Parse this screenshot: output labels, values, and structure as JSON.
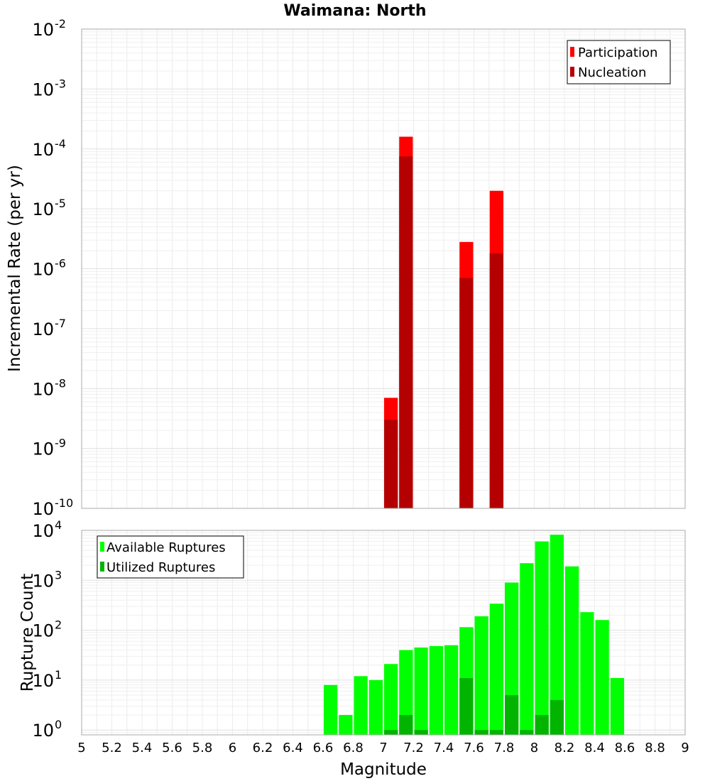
{
  "chart_data": [
    {
      "type": "bar",
      "title": "Waimana: North",
      "xlabel": "Magnitude",
      "ylabel": "Incremental Rate (per yr)",
      "yscale": "log",
      "xlim": [
        5,
        9
      ],
      "ylim": [
        1e-10,
        0.01
      ],
      "ytick_exponents": [
        -10,
        -9,
        -8,
        -7,
        -6,
        -5,
        -4,
        -3,
        -2
      ],
      "legend_position": "top-right",
      "grid": true,
      "series": [
        {
          "name": "Participation",
          "color": "#ff0000",
          "x": [
            7.05,
            7.15,
            7.55,
            7.75
          ],
          "values": [
            7e-09,
            0.00016,
            2.8e-06,
            2e-05
          ]
        },
        {
          "name": "Nucleation",
          "color": "#b40000",
          "x": [
            7.05,
            7.15,
            7.55,
            7.75
          ],
          "values": [
            3e-09,
            7.5e-05,
            7e-07,
            1.8e-06
          ]
        }
      ]
    },
    {
      "type": "bar",
      "xlabel": "Magnitude",
      "ylabel": "Rupture Count",
      "yscale": "log",
      "xlim": [
        5,
        9
      ],
      "ylim": [
        0.8,
        10000
      ],
      "ytick_exponents": [
        0,
        1,
        2,
        3,
        4
      ],
      "xticks": [
        "5",
        "5.2",
        "5.4",
        "5.6",
        "5.8",
        "6",
        "6.2",
        "6.4",
        "6.6",
        "6.8",
        "7",
        "7.2",
        "7.4",
        "7.6",
        "7.8",
        "8",
        "8.2",
        "8.4",
        "8.6",
        "8.8",
        "9"
      ],
      "legend_position": "top-left",
      "grid": true,
      "series": [
        {
          "name": "Available Ruptures",
          "color": "#00ff00",
          "x": [
            6.65,
            6.75,
            6.85,
            6.95,
            7.05,
            7.15,
            7.25,
            7.35,
            7.45,
            7.55,
            7.65,
            7.75,
            7.85,
            7.95,
            8.05,
            8.15,
            8.25,
            8.35,
            8.45,
            8.55
          ],
          "values": [
            8,
            2,
            12,
            10,
            21,
            40,
            45,
            48,
            50,
            115,
            190,
            340,
            900,
            2200,
            6000,
            8200,
            1900,
            230,
            160,
            11
          ]
        },
        {
          "name": "Utilized Ruptures",
          "color": "#00b400",
          "x": [
            7.05,
            7.15,
            7.25,
            7.55,
            7.65,
            7.75,
            7.85,
            7.95,
            8.05,
            8.15
          ],
          "values": [
            1,
            2,
            1,
            11,
            1,
            1,
            5,
            1,
            2,
            4
          ]
        }
      ]
    }
  ]
}
